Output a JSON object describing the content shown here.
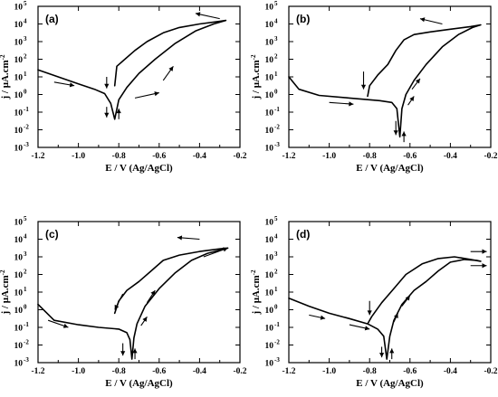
{
  "chart_data": [
    {
      "type": "line",
      "panel_label": "(a)",
      "xlabel": "E / V (Ag/AgCl)",
      "ylabel": "j / μA.cm",
      "ylabel_sup": "-2",
      "xlim": [
        -1.2,
        -0.2
      ],
      "ylim_log10": [
        -3,
        5
      ],
      "x_ticks": [
        "-1.2",
        "-1.0",
        "-0.8",
        "-0.6",
        "-0.4",
        "-0.2"
      ],
      "y_tick_base": "10",
      "y_tick_exponents": [
        "-3",
        "-2",
        "-1",
        "0",
        "1",
        "2",
        "3",
        "4",
        "5"
      ],
      "series": [
        {
          "values_log10": [
            [
              -1.2,
              1.4
            ],
            [
              -1.1,
              1.0
            ],
            [
              -1.0,
              0.6
            ],
            [
              -0.92,
              0.3
            ],
            [
              -0.87,
              0.05
            ],
            [
              -0.84,
              -0.5
            ],
            [
              -0.82,
              -1.4
            ],
            [
              -0.8,
              -0.3
            ],
            [
              -0.76,
              0.4
            ],
            [
              -0.7,
              1.2
            ],
            [
              -0.62,
              2.0
            ],
            [
              -0.52,
              2.9
            ],
            [
              -0.42,
              3.6
            ],
            [
              -0.33,
              4.0
            ],
            [
              -0.27,
              4.2
            ],
            [
              -0.3,
              4.15
            ],
            [
              -0.4,
              4.0
            ],
            [
              -0.5,
              3.8
            ],
            [
              -0.58,
              3.5
            ],
            [
              -0.66,
              3.0
            ],
            [
              -0.72,
              2.5
            ],
            [
              -0.77,
              2.0
            ],
            [
              -0.81,
              1.6
            ],
            [
              -0.82,
              0.5
            ]
          ]
        }
      ],
      "arrows": [
        {
          "from": [
            -1.12,
            0.7
          ],
          "to": [
            -1.02,
            0.5
          ]
        },
        {
          "from": [
            -0.86,
            1.0
          ],
          "to": [
            -0.86,
            0.35
          ]
        },
        {
          "from": [
            -0.86,
            -0.7
          ],
          "to": [
            -0.86,
            -1.3
          ]
        },
        {
          "from": [
            -0.8,
            -1.4
          ],
          "to": [
            -0.8,
            -0.8
          ]
        },
        {
          "from": [
            -0.72,
            -0.2
          ],
          "to": [
            -0.6,
            0.1
          ]
        },
        {
          "from": [
            -0.58,
            0.8
          ],
          "to": [
            -0.53,
            1.6
          ]
        },
        {
          "from": [
            -0.3,
            4.3
          ],
          "to": [
            -0.42,
            4.6
          ]
        }
      ]
    },
    {
      "type": "line",
      "panel_label": "(b)",
      "xlabel": "E / V (Ag/AgCl)",
      "ylabel": "j / μA.cm",
      "ylabel_sup": "-2",
      "xlim": [
        -1.2,
        -0.2
      ],
      "ylim_log10": [
        -3,
        5
      ],
      "x_ticks": [
        "-1.2",
        "-1.0",
        "-0.8",
        "-0.6",
        "-0.4",
        "-0.2"
      ],
      "y_tick_base": "10",
      "y_tick_exponents": [
        "-3",
        "-2",
        "-1",
        "0",
        "1",
        "2",
        "3",
        "4",
        "5"
      ],
      "series": [
        {
          "values_log10": [
            [
              -1.2,
              1.0
            ],
            [
              -1.15,
              0.3
            ],
            [
              -1.05,
              -0.05
            ],
            [
              -0.9,
              -0.2
            ],
            [
              -0.75,
              -0.35
            ],
            [
              -0.69,
              -0.45
            ],
            [
              -0.665,
              -0.8
            ],
            [
              -0.65,
              -2.4
            ],
            [
              -0.64,
              -0.8
            ],
            [
              -0.62,
              0.0
            ],
            [
              -0.58,
              0.8
            ],
            [
              -0.52,
              1.7
            ],
            [
              -0.44,
              2.7
            ],
            [
              -0.36,
              3.4
            ],
            [
              -0.29,
              3.8
            ],
            [
              -0.25,
              3.95
            ],
            [
              -0.3,
              3.85
            ],
            [
              -0.4,
              3.7
            ],
            [
              -0.5,
              3.55
            ],
            [
              -0.58,
              3.4
            ],
            [
              -0.63,
              3.1
            ],
            [
              -0.67,
              2.5
            ],
            [
              -0.71,
              1.7
            ],
            [
              -0.76,
              1.1
            ],
            [
              -0.8,
              0.5
            ],
            [
              -0.81,
              -0.1
            ]
          ]
        }
      ],
      "arrows": [
        {
          "from": [
            -1.0,
            -0.45
          ],
          "to": [
            -0.88,
            -0.55
          ]
        },
        {
          "from": [
            -0.83,
            1.3
          ],
          "to": [
            -0.83,
            0.3
          ]
        },
        {
          "from": [
            -0.67,
            -1.5
          ],
          "to": [
            -0.67,
            -2.3
          ]
        },
        {
          "from": [
            -0.63,
            -2.7
          ],
          "to": [
            -0.63,
            -2.1
          ]
        },
        {
          "from": [
            -0.61,
            -0.6
          ],
          "to": [
            -0.58,
            -0.1
          ]
        },
        {
          "from": [
            -0.59,
            0.3
          ],
          "to": [
            -0.55,
            0.9
          ]
        },
        {
          "from": [
            -0.44,
            4.0
          ],
          "to": [
            -0.55,
            4.3
          ]
        }
      ]
    },
    {
      "type": "line",
      "panel_label": "(c)",
      "xlabel": "E / V (Ag/AgCl)",
      "ylabel": "j / μA.cm",
      "ylabel_sup": "-2",
      "xlim": [
        -1.2,
        -0.2
      ],
      "ylim_log10": [
        -3,
        5
      ],
      "x_ticks": [
        "-1.2",
        "-1.0",
        "-0.8",
        "-0.6",
        "-0.4",
        "-0.2"
      ],
      "y_tick_base": "10",
      "y_tick_exponents": [
        "-3",
        "-2",
        "-1",
        "0",
        "1",
        "2",
        "3",
        "4",
        "5"
      ],
      "series": [
        {
          "values_log10": [
            [
              -1.2,
              0.3
            ],
            [
              -1.12,
              -0.6
            ],
            [
              -1.0,
              -0.85
            ],
            [
              -0.9,
              -1.0
            ],
            [
              -0.8,
              -1.1
            ],
            [
              -0.76,
              -1.3
            ],
            [
              -0.745,
              -1.7
            ],
            [
              -0.735,
              -2.8
            ],
            [
              -0.725,
              -1.6
            ],
            [
              -0.71,
              -0.8
            ],
            [
              -0.67,
              0.2
            ],
            [
              -0.6,
              1.2
            ],
            [
              -0.52,
              2.1
            ],
            [
              -0.44,
              2.8
            ],
            [
              -0.36,
              3.2
            ],
            [
              -0.29,
              3.4
            ],
            [
              -0.26,
              3.5
            ],
            [
              -0.3,
              3.45
            ],
            [
              -0.4,
              3.3
            ],
            [
              -0.5,
              3.1
            ],
            [
              -0.58,
              2.8
            ],
            [
              -0.64,
              2.2
            ],
            [
              -0.7,
              1.6
            ],
            [
              -0.76,
              1.1
            ],
            [
              -0.8,
              0.5
            ],
            [
              -0.82,
              -0.2
            ]
          ]
        }
      ],
      "arrows": [
        {
          "from": [
            -1.15,
            -0.6
          ],
          "to": [
            -1.05,
            -1.0
          ]
        },
        {
          "from": [
            -0.78,
            0.9
          ],
          "to": [
            -0.82,
            0.0
          ]
        },
        {
          "from": [
            -0.78,
            -1.9
          ],
          "to": [
            -0.78,
            -2.6
          ]
        },
        {
          "from": [
            -0.72,
            -2.8
          ],
          "to": [
            -0.72,
            -2.2
          ]
        },
        {
          "from": [
            -0.69,
            -0.9
          ],
          "to": [
            -0.66,
            -0.4
          ]
        },
        {
          "from": [
            -0.66,
            0.4
          ],
          "to": [
            -0.62,
            1.1
          ]
        },
        {
          "from": [
            -0.4,
            4.0
          ],
          "to": [
            -0.51,
            4.1
          ]
        },
        {
          "from": [
            -0.38,
            3.0
          ],
          "to": [
            -0.26,
            3.5
          ]
        }
      ]
    },
    {
      "type": "line",
      "panel_label": "(d)",
      "xlabel": "E / V (Ag/AgCl)",
      "ylabel": "j / μA.cm",
      "ylabel_sup": "-2",
      "xlim": [
        -1.2,
        -0.2
      ],
      "ylim_log10": [
        -3,
        5
      ],
      "x_ticks": [
        "-1.2",
        "-1.0",
        "-0.8",
        "-0.6",
        "-0.4",
        "-0.2"
      ],
      "y_tick_base": "10",
      "y_tick_exponents": [
        "-3",
        "-2",
        "-1",
        "0",
        "1",
        "2",
        "3",
        "4",
        "5"
      ],
      "series": [
        {
          "values_log10": [
            [
              -1.2,
              0.65
            ],
            [
              -1.1,
              0.2
            ],
            [
              -1.0,
              -0.2
            ],
            [
              -0.9,
              -0.5
            ],
            [
              -0.81,
              -0.8
            ],
            [
              -0.76,
              -1.1
            ],
            [
              -0.73,
              -1.5
            ],
            [
              -0.715,
              -2.8
            ],
            [
              -0.7,
              -1.5
            ],
            [
              -0.68,
              -0.6
            ],
            [
              -0.64,
              0.3
            ],
            [
              -0.58,
              1.1
            ],
            [
              -0.52,
              1.6
            ],
            [
              -0.46,
              2.2
            ],
            [
              -0.4,
              2.7
            ],
            [
              -0.33,
              2.85
            ],
            [
              -0.27,
              2.8
            ],
            [
              -0.25,
              2.75
            ],
            [
              -0.3,
              2.85
            ],
            [
              -0.38,
              3.0
            ],
            [
              -0.46,
              2.9
            ],
            [
              -0.54,
              2.6
            ],
            [
              -0.62,
              2.0
            ],
            [
              -0.68,
              1.2
            ],
            [
              -0.74,
              0.4
            ],
            [
              -0.79,
              -0.4
            ],
            [
              -0.81,
              -0.8
            ]
          ]
        }
      ],
      "arrows": [
        {
          "from": [
            -1.1,
            -0.3
          ],
          "to": [
            -1.02,
            -0.5
          ]
        },
        {
          "from": [
            -0.9,
            -0.85
          ],
          "to": [
            -0.8,
            -1.1
          ]
        },
        {
          "from": [
            -0.8,
            0.5
          ],
          "to": [
            -0.8,
            -0.3
          ]
        },
        {
          "from": [
            -0.74,
            -2.1
          ],
          "to": [
            -0.74,
            -2.7
          ]
        },
        {
          "from": [
            -0.69,
            -2.8
          ],
          "to": [
            -0.69,
            -2.2
          ]
        },
        {
          "from": [
            -0.68,
            -0.7
          ],
          "to": [
            -0.66,
            -0.2
          ]
        },
        {
          "from": [
            -0.64,
            0.2
          ],
          "to": [
            -0.6,
            0.8
          ]
        },
        {
          "from": [
            -0.3,
            3.3
          ],
          "to": [
            -0.22,
            3.3
          ]
        },
        {
          "from": [
            -0.3,
            2.5
          ],
          "to": [
            -0.22,
            2.5
          ]
        }
      ]
    }
  ]
}
